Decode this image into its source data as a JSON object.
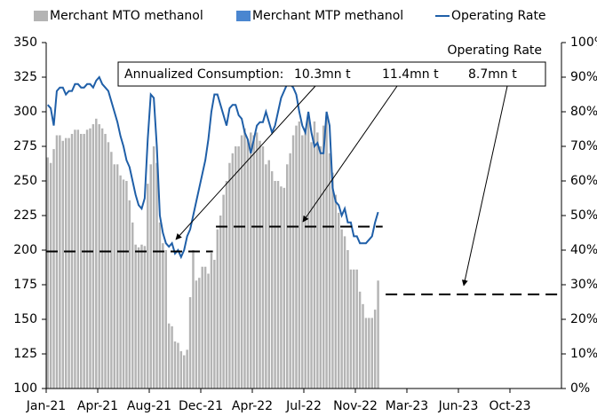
{
  "chart_data": {
    "type": "bar",
    "legend": "top",
    "categories": [
      "Jan-21",
      null,
      null,
      null,
      null,
      null,
      null,
      null,
      null,
      null,
      null,
      null,
      null,
      null,
      null,
      null,
      null,
      "Apr-21",
      null,
      null,
      null,
      null,
      null,
      null,
      null,
      null,
      null,
      null,
      null,
      null,
      null,
      null,
      null,
      null,
      "Aug-21",
      null,
      null,
      null,
      null,
      null,
      null,
      null,
      null,
      null,
      null,
      null,
      null,
      null,
      null,
      null,
      null,
      "Dec-21",
      null,
      null,
      null,
      null,
      null,
      null,
      null,
      null,
      null,
      null,
      null,
      null,
      null,
      null,
      null,
      null,
      "Apr-22",
      null,
      null,
      null,
      null,
      null,
      null,
      null,
      null,
      null,
      null,
      null,
      null,
      null,
      null,
      null,
      null,
      "Jul-22",
      null,
      null,
      null,
      null,
      null,
      null,
      null,
      null,
      null,
      null,
      null,
      null,
      null,
      null,
      null,
      null,
      "Nov-22",
      null,
      null,
      null,
      null,
      null,
      null,
      null,
      null,
      null,
      null,
      null,
      null,
      null,
      null,
      null,
      null,
      "Mar-23",
      null,
      null,
      null,
      null,
      null,
      null,
      null,
      null,
      null,
      null,
      null,
      null,
      null,
      null,
      null,
      null,
      "Jun-23",
      null,
      null,
      null,
      null,
      null,
      null,
      null,
      null,
      null,
      null,
      null,
      null,
      null,
      null,
      null,
      null,
      "Oct-23",
      null,
      null,
      null,
      null,
      null,
      null,
      null,
      null,
      null,
      null,
      null,
      null,
      null,
      null,
      null,
      null
    ],
    "series": [
      {
        "name": "Merchant MTO methanol",
        "color": "#b4b4b4",
        "type": "bar",
        "values": [
          267,
          263,
          273,
          283,
          283,
          279,
          281,
          281,
          284,
          287,
          287,
          284,
          284,
          287,
          288,
          291,
          295,
          291,
          288,
          284,
          278,
          271,
          262,
          262,
          254,
          251,
          250,
          236,
          220,
          204,
          202,
          204,
          203,
          248,
          262,
          275,
          263,
          220,
          205,
          200,
          147,
          145,
          134,
          133,
          127,
          124,
          128,
          166,
          200,
          178,
          180,
          188,
          188,
          183,
          198,
          193,
          215,
          225,
          240,
          250,
          263,
          270,
          275,
          275,
          283,
          288,
          280,
          285,
          283,
          285,
          279,
          275,
          262,
          265,
          257,
          250,
          250,
          246,
          245,
          262,
          270,
          283,
          290,
          293,
          283,
          288,
          296,
          278,
          293,
          285,
          275,
          290,
          297,
          270,
          256,
          240,
          227,
          215,
          210,
          200,
          186,
          186,
          186,
          170,
          161,
          151,
          151,
          151,
          157,
          178,
          null,
          null,
          null,
          null,
          null,
          null,
          null,
          null,
          null,
          null,
          null,
          null,
          null,
          null,
          null,
          null,
          null,
          null,
          null,
          null,
          null,
          null,
          null,
          null,
          null,
          null,
          null,
          null,
          null,
          null,
          null,
          null,
          null,
          null,
          null,
          null,
          null,
          null,
          null,
          null,
          null,
          null,
          null,
          null,
          null,
          null,
          null,
          null,
          null,
          null,
          null,
          null,
          null,
          null,
          null,
          null,
          null,
          null,
          null,
          null
        ]
      },
      {
        "name": "Merchant MTP methanol",
        "color": "#4a86d0",
        "type": "bar",
        "values": [
          null,
          null,
          null,
          null,
          null,
          null,
          null,
          null,
          null,
          null,
          null,
          null,
          null,
          null,
          null,
          null,
          null,
          null,
          null,
          null,
          null,
          null,
          null,
          null,
          null,
          null,
          null,
          null,
          null,
          null,
          null,
          null,
          null,
          null,
          null,
          null,
          null,
          null,
          null,
          null,
          null,
          null,
          null,
          null,
          null,
          null,
          null,
          null,
          null,
          null,
          null,
          null,
          null,
          null,
          null,
          null,
          null,
          null,
          null,
          null,
          null,
          null,
          null,
          null,
          null,
          null,
          null,
          null,
          null,
          null,
          null,
          null,
          null,
          null,
          null,
          null,
          null,
          null,
          null,
          null,
          null,
          null,
          null,
          null,
          null,
          null,
          null,
          null,
          null,
          null,
          null,
          null,
          null,
          null,
          null,
          null,
          null,
          null,
          null,
          null,
          null,
          null,
          null,
          null,
          null,
          null,
          null,
          null,
          null,
          null,
          null,
          null,
          null,
          null,
          null,
          null,
          null,
          null,
          null,
          null,
          null,
          null,
          null,
          null,
          null,
          null,
          null,
          null,
          null,
          null,
          null,
          null,
          null,
          null,
          null,
          null,
          null,
          null,
          null,
          null,
          null,
          null,
          null,
          null,
          null,
          null,
          null,
          null,
          null,
          null,
          null,
          null,
          null,
          null,
          null,
          null,
          null,
          null,
          null,
          null,
          null,
          null,
          null,
          null,
          null,
          null,
          null,
          null,
          null,
          null
        ]
      },
      {
        "name": "Operating Rate",
        "color": "#1f5fa8",
        "type": "line",
        "axis": "y2",
        "values": [
          82,
          81,
          76,
          86,
          87,
          87,
          85,
          86,
          86,
          88,
          88,
          87,
          87,
          88,
          88,
          87,
          89,
          90,
          88,
          87,
          86,
          83,
          80,
          77,
          73,
          70,
          66,
          64,
          60,
          56,
          53,
          52,
          55,
          72,
          85,
          84,
          70,
          50,
          45,
          42,
          41,
          42,
          39,
          40,
          38,
          40,
          44,
          46,
          50,
          54,
          58,
          62,
          66,
          72,
          80,
          85,
          85,
          82,
          79,
          76,
          81,
          82,
          82,
          79,
          78,
          74,
          72,
          68,
          72,
          76,
          77,
          77,
          80,
          77,
          74,
          76,
          80,
          84,
          86,
          88,
          88,
          87,
          85,
          80,
          76,
          74,
          80,
          74,
          70,
          71,
          68,
          68,
          80,
          76,
          58,
          54,
          53,
          50,
          52,
          48,
          48,
          44,
          44,
          42,
          42,
          42,
          43,
          44,
          48,
          51,
          null,
          null,
          null,
          null,
          null,
          null,
          null,
          null,
          null,
          null,
          null,
          null,
          null,
          null,
          null,
          null,
          null,
          null,
          null,
          null,
          null,
          null,
          null,
          null,
          null,
          null,
          null,
          null,
          null,
          null,
          null,
          null,
          null,
          null,
          null,
          null,
          null,
          null,
          null,
          null,
          null,
          null,
          null,
          null,
          null,
          null,
          null,
          null,
          null,
          null,
          null,
          null,
          null,
          null,
          null,
          null,
          null,
          null,
          null,
          null
        ]
      }
    ],
    "ylim": [
      100,
      350
    ],
    "yticks": [
      100,
      125,
      150,
      175,
      200,
      225,
      250,
      275,
      300,
      325,
      350
    ],
    "y2lim": [
      0,
      100
    ],
    "y2ticks": [
      {
        "value": 0,
        "label": "0%"
      },
      {
        "value": 10,
        "label": "10%"
      },
      {
        "value": 20,
        "label": "20%"
      },
      {
        "value": 30,
        "label": "30%"
      },
      {
        "value": 40,
        "label": "40%"
      },
      {
        "value": 50,
        "label": "50%"
      },
      {
        "value": 60,
        "label": "60%"
      },
      {
        "value": 70,
        "label": "70%"
      },
      {
        "value": 80,
        "label": "80%"
      },
      {
        "value": 90,
        "label": "90%"
      },
      {
        "value": 100,
        "label": "100%"
      }
    ],
    "y2label": "Operating Rate",
    "annotation": "Annualized Consumption:",
    "reference_lines": [
      {
        "label": "10.3mn t",
        "value": 199,
        "from": 0,
        "to": 55
      },
      {
        "label": "11.4mn t",
        "value": 217,
        "from": 56,
        "to": 111
      },
      {
        "label": "8.7mn t",
        "value": 168,
        "from": 112,
        "to": 170
      }
    ]
  }
}
